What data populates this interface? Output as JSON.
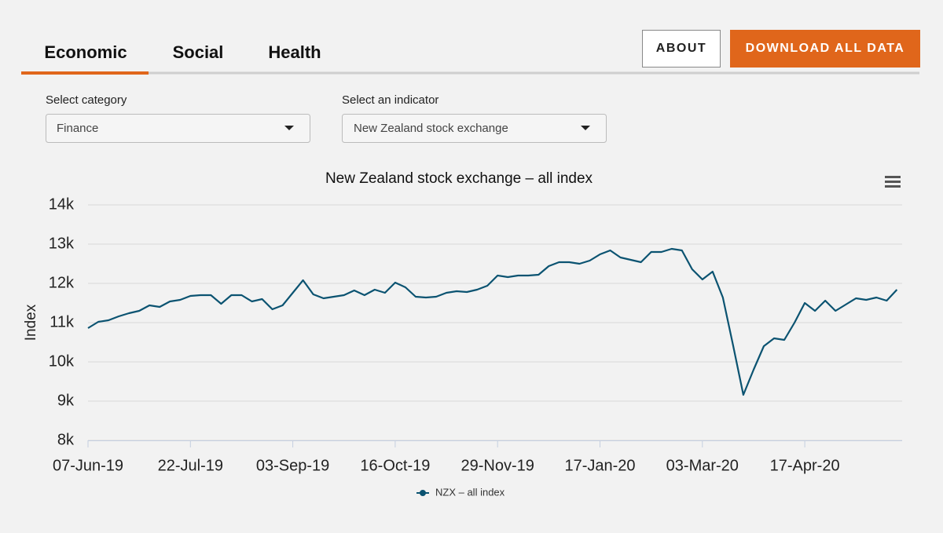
{
  "tabs": [
    "Economic",
    "Social",
    "Health"
  ],
  "buttons": {
    "about": "ABOUT",
    "download": "DOWNLOAD ALL DATA"
  },
  "filters": {
    "category": {
      "label": "Select category",
      "value": "Finance"
    },
    "indicator": {
      "label": "Select an indicator",
      "value": "New Zealand stock exchange"
    }
  },
  "chart_data": {
    "type": "line",
    "title": "New Zealand stock exchange – all index",
    "y_label": "Index",
    "categories": [
      "07-Jun-19",
      null,
      null,
      null,
      null,
      null,
      null,
      null,
      null,
      null,
      "22-Jul-19",
      null,
      null,
      null,
      null,
      null,
      null,
      null,
      null,
      null,
      "03-Sep-19",
      null,
      null,
      null,
      null,
      null,
      null,
      null,
      null,
      null,
      "16-Oct-19",
      null,
      null,
      null,
      null,
      null,
      null,
      null,
      null,
      null,
      "29-Nov-19",
      null,
      null,
      null,
      null,
      null,
      null,
      null,
      null,
      null,
      "17-Jan-20",
      null,
      null,
      null,
      null,
      null,
      null,
      null,
      null,
      null,
      "03-Mar-20",
      null,
      null,
      null,
      null,
      null,
      null,
      null,
      null,
      null,
      "17-Apr-20",
      null,
      null,
      null,
      null,
      null,
      null,
      null,
      null,
      null
    ],
    "series": [
      {
        "name": "NZX – all index",
        "color": "#0b5371",
        "values": [
          10860,
          11020,
          11060,
          11160,
          11240,
          11300,
          11440,
          11400,
          11540,
          11580,
          11680,
          11700,
          11700,
          11480,
          11700,
          11700,
          11540,
          11600,
          11340,
          11440,
          11760,
          12080,
          11720,
          11620,
          11660,
          11700,
          11820,
          11700,
          11840,
          11760,
          12020,
          11900,
          11660,
          11640,
          11660,
          11760,
          11800,
          11780,
          11840,
          11940,
          12200,
          12160,
          12200,
          12200,
          12220,
          12440,
          12540,
          12540,
          12500,
          12580,
          12740,
          12840,
          12660,
          12600,
          12540,
          12800,
          12800,
          12880,
          12840,
          12360,
          12100,
          12300,
          11640,
          10420,
          9160,
          9800,
          10400,
          10600,
          10560,
          11000,
          11500,
          11300,
          11560,
          11300,
          11460,
          11620,
          11580,
          11640,
          11560,
          11840
        ]
      }
    ],
    "ylim": [
      8000,
      14000
    ],
    "yticks": [
      {
        "value": 8000,
        "label": "8k"
      },
      {
        "value": 9000,
        "label": "9k"
      },
      {
        "value": 10000,
        "label": "10k"
      },
      {
        "value": 11000,
        "label": "11k"
      },
      {
        "value": 12000,
        "label": "12k"
      },
      {
        "value": 13000,
        "label": "13k"
      },
      {
        "value": 14000,
        "label": "14k"
      }
    ],
    "grid": true,
    "legend": "bottom"
  }
}
